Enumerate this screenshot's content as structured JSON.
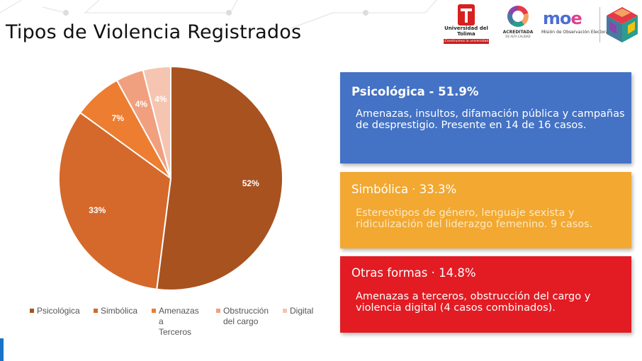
{
  "slide": {
    "title": "Tipos de Violencia Registrados"
  },
  "logos": {
    "university_name": "Universidad del Tolima",
    "university_tagline": "¡Construimos la universidad que soñamos!",
    "accreditation_label": "ACREDITADA",
    "accreditation_sub": "DE ALTA CALIDAD",
    "moe_word_prefix": "mo",
    "moe_word_suffix": "e",
    "moe_subtitle": "Misión de Observación Electoral"
  },
  "chart_data": {
    "type": "pie",
    "categories": [
      "Psicológica",
      "Simbólica",
      "Amenazas a Terceros",
      "Obstrucción del cargo",
      "Digital"
    ],
    "values": [
      52,
      33,
      7,
      4,
      4
    ],
    "data_labels": [
      "52%",
      "33%",
      "7%",
      "4%",
      "4%"
    ],
    "colors": [
      "#a85220",
      "#d4692b",
      "#ed7d31",
      "#f0a07e",
      "#f5c5b2"
    ],
    "legend": {
      "placement": "bottom",
      "labels": [
        "Psicológica",
        "Simbólica",
        "Amenazas a\nTerceros",
        "Obstrucción\ndel cargo",
        "Digital"
      ]
    }
  },
  "cards": [
    {
      "title": "Psicológica - 51.9%",
      "body": "Amenazas, insultos, difamación pública y campañas de desprestigio. Presente en 14 de 16 casos.",
      "color": "#4472c4"
    },
    {
      "title": "Simbólica · 33.3%",
      "body": "Estereotipos de género, lenguaje sexista y ridiculización del liderazgo femenino. 9 casos.",
      "color": "#f2a831"
    },
    {
      "title": "Otras formas · 14.8%",
      "body": "Amenazas a terceros, obstrucción del cargo y violencia digital (4 casos combinados).",
      "color": "#e31b23"
    }
  ]
}
